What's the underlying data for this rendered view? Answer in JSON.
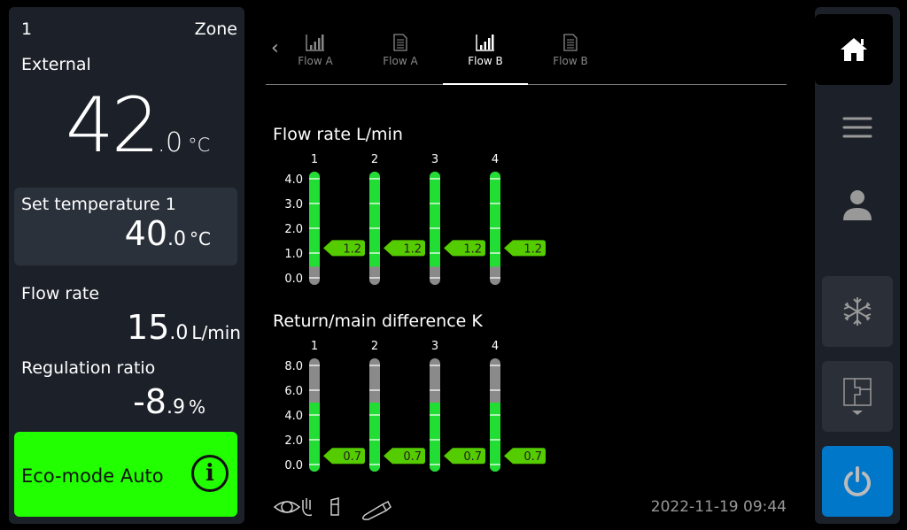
{
  "left": {
    "zone_number": "1",
    "zone_label": "Zone",
    "external_label": "External",
    "external_int": "42",
    "external_dec": ".0",
    "external_unit": "°C",
    "set_label": "Set temperature 1",
    "set_int": "40",
    "set_dec": ".0",
    "set_unit": "°C",
    "flow_label": "Flow rate",
    "flow_int": "15",
    "flow_dec": ".0",
    "flow_unit": "L/min",
    "reg_label": "Regulation ratio",
    "reg_int": "-8",
    "reg_dec": ".9",
    "reg_unit": "%",
    "eco_label": "Eco-mode Auto",
    "eco_color": "#22ff00"
  },
  "tabs": [
    {
      "label": "Flow A",
      "icon": "bar-chart-icon"
    },
    {
      "label": "Flow A",
      "icon": "document-icon"
    },
    {
      "label": "Flow B",
      "icon": "bar-chart-icon",
      "active": true
    },
    {
      "label": "Flow B",
      "icon": "document-icon"
    }
  ],
  "chart_data": [
    {
      "type": "bar",
      "title": "Flow rate L/min",
      "categories": [
        "1",
        "2",
        "3",
        "4"
      ],
      "yticks": [
        "0.0",
        "1.0",
        "2.0",
        "3.0",
        "4.0"
      ],
      "ylim": [
        0,
        4
      ],
      "values": [
        1.2,
        1.2,
        1.2,
        1.2
      ],
      "value_labels": [
        "1.2",
        "1.2",
        "1.2",
        "1.2"
      ],
      "green_range": [
        0.45,
        4.3
      ]
    },
    {
      "type": "bar",
      "title": "Return/main difference K",
      "categories": [
        "1",
        "2",
        "3",
        "4"
      ],
      "yticks": [
        "0.0",
        "2.0",
        "4.0",
        "6.0",
        "8.0"
      ],
      "ylim": [
        0,
        8
      ],
      "values": [
        0.7,
        0.7,
        0.7,
        0.7
      ],
      "value_labels": [
        "0.7",
        "0.7",
        "0.7",
        "0.7"
      ],
      "green_range": [
        -0.6,
        5.0
      ]
    }
  ],
  "colors": {
    "green": "#22dd33",
    "label_green": "#55cc00",
    "gray": "#8a8a8a"
  },
  "footer": {
    "datetime": "2022-11-19  09:44",
    "icons": [
      "eye-hand-icon",
      "sd-card-icon",
      "usb-icon"
    ]
  },
  "sidebar": {
    "items": [
      "home-icon",
      "menu-icon",
      "user-icon",
      "snowflake-icon",
      "floorplan-icon",
      "power-icon"
    ],
    "active": "home-icon",
    "power_color": "#0077c8"
  }
}
